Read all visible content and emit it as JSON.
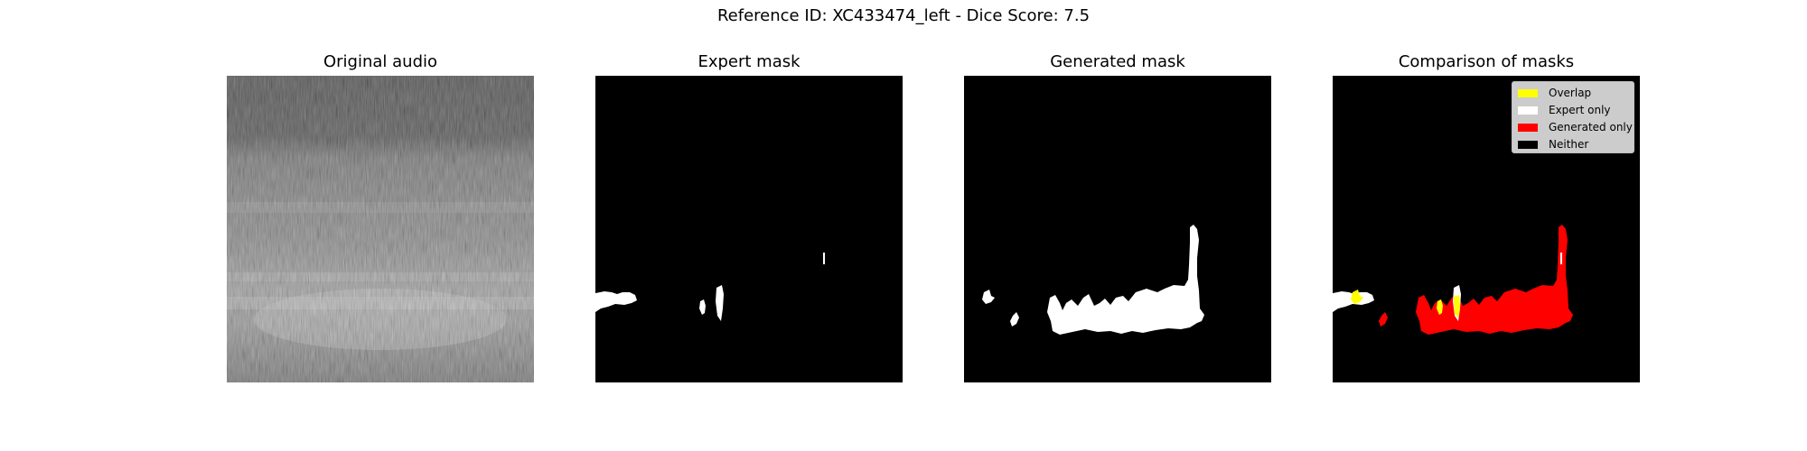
{
  "figure": {
    "suptitle": "Reference ID: XC433474_left - Dice Score: 7.5"
  },
  "panels": [
    {
      "title": "Original audio"
    },
    {
      "title": "Expert mask"
    },
    {
      "title": "Generated mask"
    },
    {
      "title": "Comparison of masks"
    }
  ],
  "legend": {
    "entries": [
      {
        "label": "Overlap",
        "color": "#ffff00"
      },
      {
        "label": "Expert only",
        "color": "#ffffff"
      },
      {
        "label": "Generated only",
        "color": "#ff0000"
      },
      {
        "label": "Neither",
        "color": "#000000"
      }
    ]
  },
  "colors": {
    "background": "#000000",
    "mask": "#ffffff",
    "overlap": "#ffff00",
    "generated_only": "#ff0000"
  }
}
